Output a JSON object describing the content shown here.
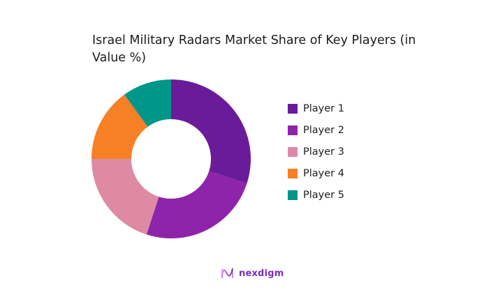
{
  "chart_data": {
    "type": "pie",
    "subtype": "donut",
    "title": "Israel Military Radars Market Share of Key Players (in Value %)",
    "categories": [
      "Player 1",
      "Player 2",
      "Player 3",
      "Player 4",
      "Player 5"
    ],
    "values": [
      30,
      25,
      20,
      15,
      10
    ],
    "colors": [
      "#6a1b9a",
      "#8e24aa",
      "#de8aa3",
      "#f58025",
      "#00968a"
    ],
    "legend_position": "right",
    "start_angle": "top, clockwise"
  },
  "title": "Israel Military Radars Market Share of Key Players (in Value %)",
  "legend": [
    {
      "label": "Player 1",
      "color": "#6a1b9a"
    },
    {
      "label": "Player 2",
      "color": "#8e24aa"
    },
    {
      "label": "Player 3",
      "color": "#de8aa3"
    },
    {
      "label": "Player 4",
      "color": "#f58025"
    },
    {
      "label": "Player 5",
      "color": "#00968a"
    }
  ],
  "brand": {
    "name": "nexdigm",
    "color": "#7b2cbf"
  }
}
